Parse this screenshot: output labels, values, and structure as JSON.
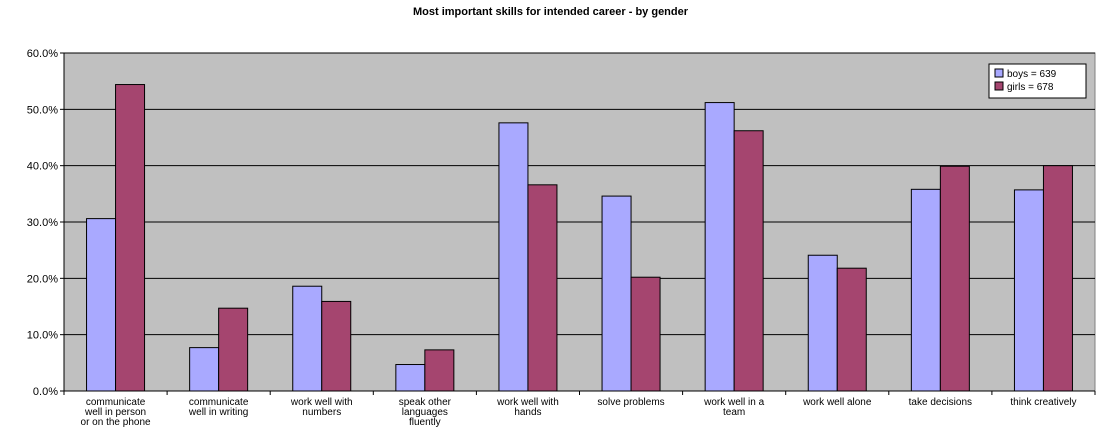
{
  "chart_data": {
    "type": "bar",
    "title": "Most important skills for intended career - by gender",
    "xlabel": "",
    "ylabel": "",
    "categories": [
      [
        "communicate",
        "well in person",
        "or on the phone"
      ],
      [
        "communicate",
        "well in writing"
      ],
      [
        "work well with",
        "numbers"
      ],
      [
        "speak other",
        "languages",
        "fluently"
      ],
      [
        "work well with",
        "hands"
      ],
      [
        "solve problems"
      ],
      [
        "work well in a",
        "team"
      ],
      [
        "work well alone"
      ],
      [
        "take decisions"
      ],
      [
        "think creatively"
      ]
    ],
    "series": [
      {
        "name": "boys = 639",
        "color": "#a9a9ff",
        "values": [
          30.6,
          7.7,
          18.6,
          4.7,
          47.6,
          34.6,
          51.2,
          24.1,
          35.8,
          35.7
        ]
      },
      {
        "name": "girls  = 678",
        "color": "#a5456f",
        "values": [
          54.4,
          14.7,
          15.9,
          7.3,
          36.6,
          20.2,
          46.2,
          21.8,
          39.9,
          40.0
        ]
      }
    ],
    "ylim": [
      0,
      60
    ],
    "yticks": [
      "0.0%",
      "10.0%",
      "20.0%",
      "30.0%",
      "40.0%",
      "50.0%",
      "60.0%"
    ],
    "grid": true,
    "plot_background": "#c0c0c0",
    "legend_position": "top-right"
  }
}
